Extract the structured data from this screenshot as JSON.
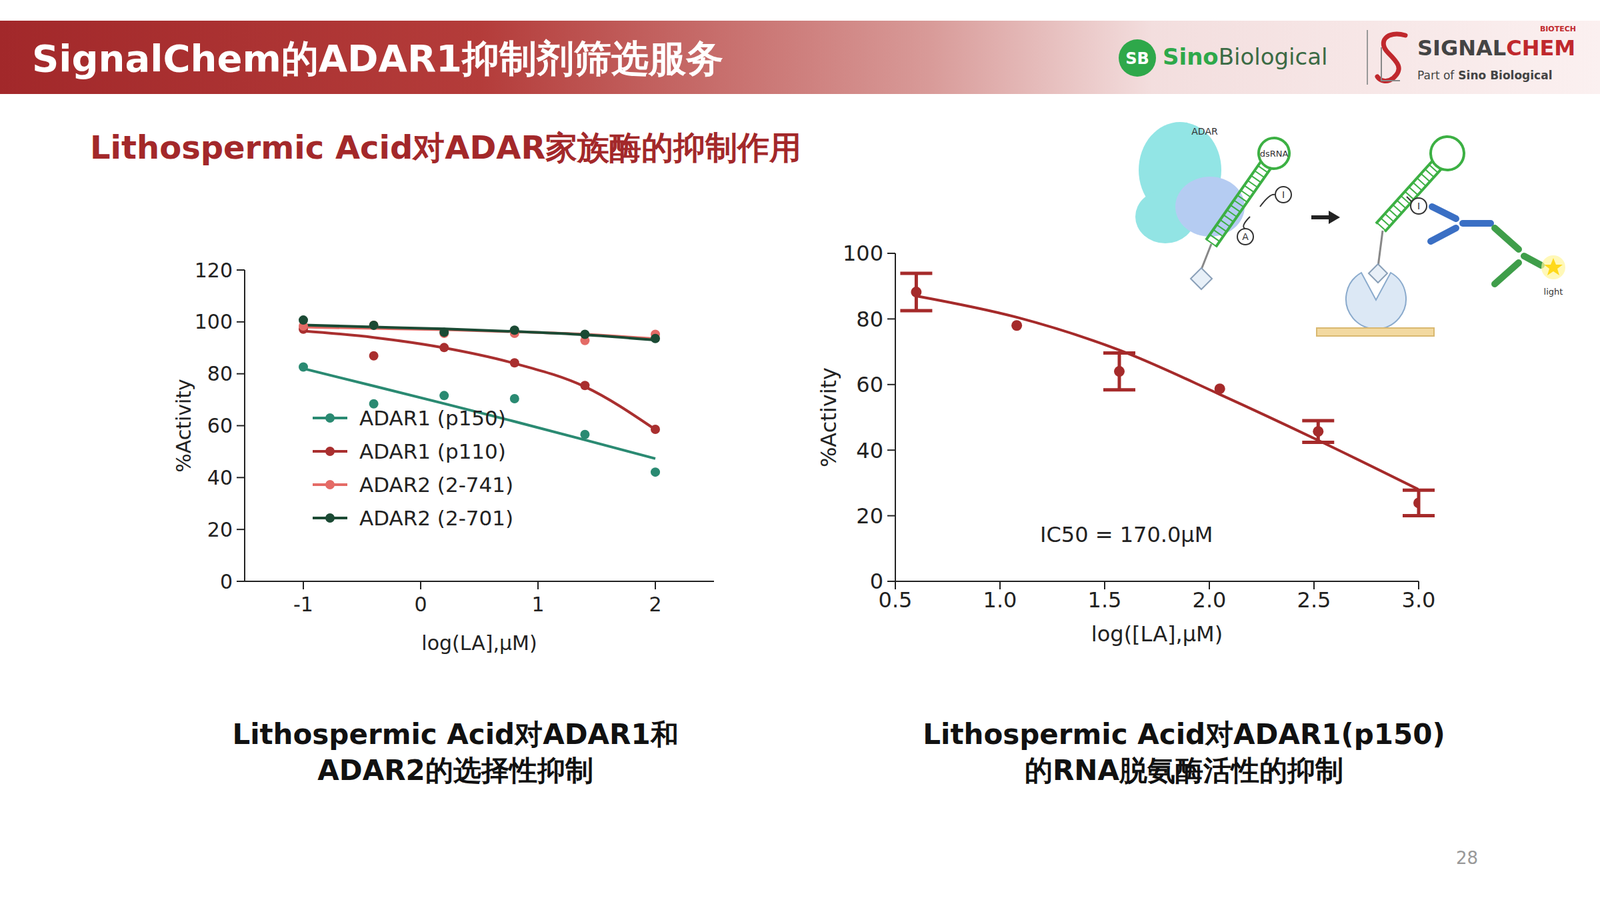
{
  "header": {
    "title": "SignalChem的ADAR1抑制剂筛选服务",
    "logo_badge": "SB",
    "logo_name": [
      "Sino",
      "Biological"
    ],
    "brand": [
      "SIGNAL",
      "CHEM"
    ],
    "brand_tag": "BIOTECH",
    "brand_parent": [
      "Part of",
      "Sino Biological"
    ]
  },
  "subtitle": "Lithospermic Acid对ADAR家族酶的抑制作用",
  "chart_data": [
    {
      "type": "scatter",
      "xlabel": "log(LA],μM)",
      "ylabel": "%Activity",
      "x": [
        -1,
        -0.4,
        0.2,
        0.8,
        1.4,
        2
      ],
      "xlim": [
        -1.5,
        2.5
      ],
      "xticks": [
        -1,
        0,
        1,
        2
      ],
      "ylim": [
        0,
        120
      ],
      "yticks": [
        0,
        20,
        40,
        60,
        80,
        100,
        120
      ],
      "legend": "lower left",
      "marker": "circle",
      "series": [
        {
          "name": "ADAR1 (p150)",
          "color": "#2a8a72",
          "values": [
            82.6,
            68.4,
            71.6,
            70.4,
            56.6,
            42.1
          ],
          "fit": [
            82,
            75.3,
            68.5,
            61.6,
            54.5,
            47.3
          ]
        },
        {
          "name": "ADAR1 (p110)",
          "color": "#a92f2f",
          "values": [
            97.2,
            86.9,
            90.1,
            84.2,
            75.5,
            58.6
          ],
          "fit": [
            96.5,
            94,
            90,
            84,
            75,
            58.5
          ]
        },
        {
          "name": "ADAR2 (2-741)",
          "color": "#e46b66",
          "values": [
            98.4,
            98.7,
            95.6,
            95.6,
            92.8,
            95.2
          ],
          "fit": [
            98,
            97.5,
            97,
            96.2,
            95.2,
            93.5
          ]
        },
        {
          "name": "ADAR2 (2-701)",
          "color": "#1b4a34",
          "values": [
            100.7,
            98.7,
            96,
            96.8,
            95.2,
            93.6
          ],
          "fit": [
            98.8,
            98,
            97.3,
            96.3,
            95,
            93
          ]
        }
      ],
      "caption": [
        "Lithospermic Acid对ADAR1和",
        "ADAR2的选择性抑制"
      ]
    },
    {
      "type": "scatter",
      "xlabel": "log([LA],μM)",
      "ylabel": "%Activity",
      "x": [
        0.6,
        1.08,
        1.57,
        2.05,
        2.52,
        3.0
      ],
      "values": [
        88.2,
        78,
        64,
        58.7,
        45.7,
        23.9
      ],
      "error": [
        5.7,
        null,
        5.6,
        null,
        3.3,
        3.9
      ],
      "fit": [
        87,
        80.5,
        70.5,
        57,
        43,
        28
      ],
      "color": "#a52a2a",
      "marker": "circle",
      "xlim": [
        0.5,
        3.0
      ],
      "xticks": [
        0.5,
        {
          "value": 1,
          "label": "1.0"
        },
        1.5,
        {
          "value": 2,
          "label": "2.0"
        },
        2.5,
        {
          "value": 3,
          "label": "3.0"
        }
      ],
      "ylim": [
        0,
        100
      ],
      "yticks": [
        0,
        20,
        40,
        60,
        80,
        100
      ],
      "annotation": "IC50 = 170.0μM",
      "caption": [
        "Lithospermic Acid对ADAR1(p150)",
        "的RNA脱氨酶活性的抑制"
      ]
    }
  ],
  "diagram": {
    "labels": {
      "protein": "ADAR",
      "rna": "dsRNA",
      "inosine": "I",
      "adenosine": "A",
      "signal": "light"
    }
  },
  "page": 28
}
